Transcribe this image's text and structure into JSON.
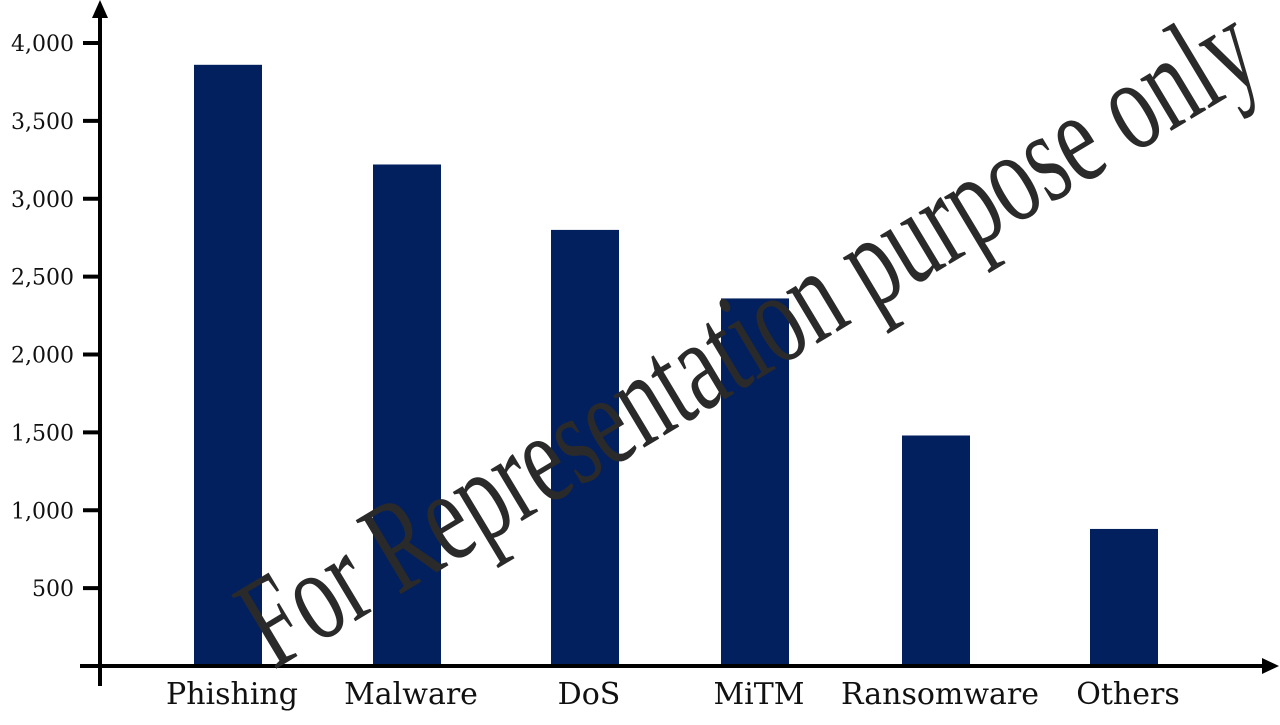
{
  "chart_data": {
    "type": "bar",
    "title": "",
    "xlabel": "",
    "ylabel": "",
    "categories": [
      "Phishing",
      "Malware",
      "DoS",
      "MiTM",
      "Ransomware",
      "Others"
    ],
    "values": [
      3860,
      3220,
      2800,
      2360,
      1480,
      880
    ],
    "ylim": [
      0,
      4000
    ],
    "yticks": [
      500,
      1000,
      1500,
      2000,
      2500,
      3000,
      3500,
      4000
    ],
    "ytick_labels": [
      "500",
      "1,000",
      "1,500",
      "2,000",
      "2,500",
      "3,000",
      "3,500",
      "4,000"
    ],
    "bar_color": "#03205e",
    "grid": false,
    "legend": "none"
  },
  "watermark": {
    "text": "For Representation purpose only"
  }
}
